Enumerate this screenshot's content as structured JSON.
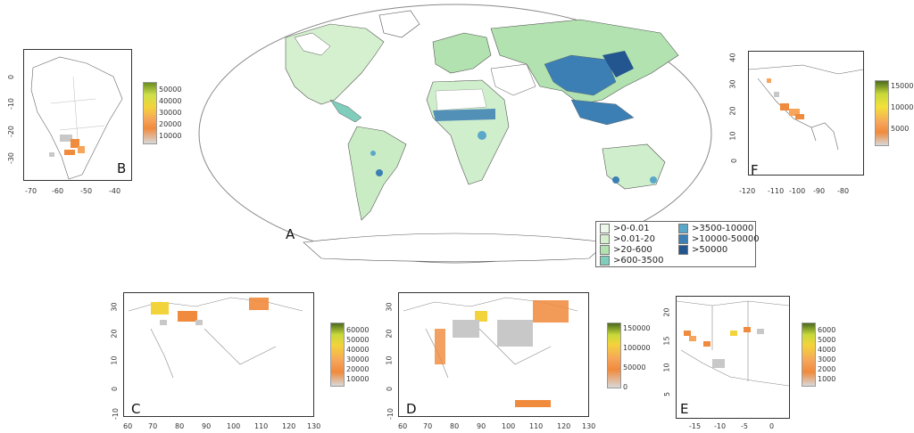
{
  "panels": {
    "A": {
      "letter": "A"
    },
    "B": {
      "letter": "B",
      "xticks": [
        "-70",
        "-60",
        "-50",
        "-40"
      ],
      "yticks": [
        "0",
        "-10",
        "-20",
        "-30"
      ],
      "colorbar": [
        "50000",
        "40000",
        "30000",
        "20000",
        "10000"
      ]
    },
    "C": {
      "letter": "C",
      "xticks": [
        "60",
        "70",
        "80",
        "90",
        "100",
        "110",
        "120",
        "130"
      ],
      "yticks": [
        "30",
        "20",
        "10",
        "0",
        "-10"
      ],
      "colorbar": [
        "60000",
        "50000",
        "40000",
        "30000",
        "20000",
        "10000"
      ]
    },
    "D": {
      "letter": "D",
      "xticks": [
        "60",
        "70",
        "80",
        "90",
        "100",
        "110",
        "120",
        "130"
      ],
      "yticks": [
        "30",
        "20",
        "10",
        "0",
        "-10"
      ],
      "colorbar": [
        "150000",
        "100000",
        "50000",
        "0"
      ]
    },
    "E": {
      "letter": "E",
      "xticks": [
        "-15",
        "-10",
        "-5",
        "0"
      ],
      "yticks": [
        "20",
        "15",
        "10",
        "5"
      ],
      "colorbar": [
        "6000",
        "5000",
        "4000",
        "3000",
        "2000",
        "1000"
      ]
    },
    "F": {
      "letter": "F",
      "xticks": [
        "-120",
        "-110",
        "-100",
        "-90",
        "-80"
      ],
      "yticks": [
        "40",
        "30",
        "20",
        "10",
        "0"
      ],
      "colorbar": [
        "15000",
        "10000",
        "5000"
      ]
    }
  },
  "legend": {
    "items": [
      {
        "label": ">0-0.01",
        "color": "#eef8ea"
      },
      {
        "label": ">0.01-20",
        "color": "#d6f0cf"
      },
      {
        "label": ">20-600",
        "color": "#b2e2b0"
      },
      {
        "label": ">600-3500",
        "color": "#7fcdbb"
      },
      {
        "label": ">3500-10000",
        "color": "#5aa8c9"
      },
      {
        "label": ">10000-50000",
        "color": "#3c7fb5"
      },
      {
        "label": ">50000",
        "color": "#23558f"
      }
    ]
  },
  "colors": {
    "land": "#cfeecb",
    "hot": "#f08a3c",
    "grey": "#c8c8c8"
  }
}
